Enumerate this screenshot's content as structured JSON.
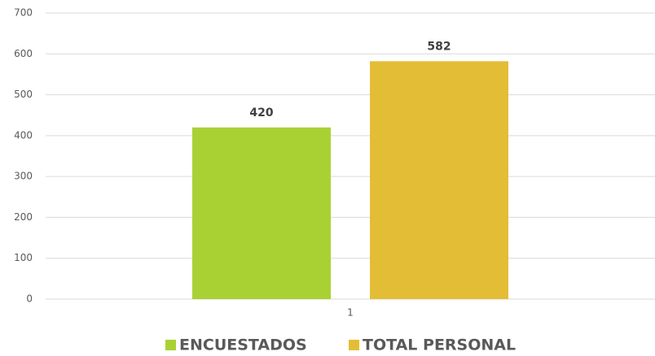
{
  "chart_data": {
    "type": "bar",
    "categories": [
      "1"
    ],
    "series": [
      {
        "name": "ENCUESTADOS",
        "color": "#a9d134",
        "values": [
          420
        ]
      },
      {
        "name": "TOTAL PERSONAL",
        "color": "#e4bd36",
        "values": [
          582
        ]
      }
    ],
    "ylim": [
      0,
      700
    ],
    "yticks": [
      0,
      100,
      200,
      300,
      400,
      500,
      600,
      700
    ],
    "grid": true,
    "legend": "bottom"
  }
}
